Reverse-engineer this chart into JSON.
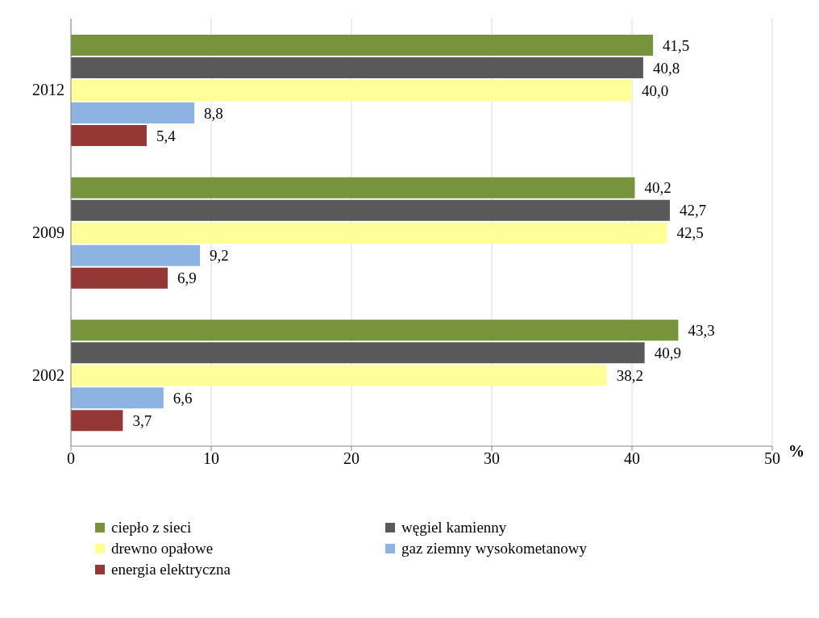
{
  "chart_data": {
    "type": "bar",
    "orientation": "horizontal",
    "xlabel": "%",
    "categories": [
      "2012",
      "2009",
      "2002"
    ],
    "series": [
      {
        "name": "ciepło z sieci",
        "color": "#77933c",
        "values": [
          41.5,
          40.2,
          43.3
        ],
        "value_labels": [
          "41,5",
          "40,2",
          "43,3"
        ]
      },
      {
        "name": "węgiel kamienny",
        "color": "#595959",
        "values": [
          40.8,
          42.7,
          40.9
        ],
        "value_labels": [
          "40,8",
          "42,7",
          "40,9"
        ]
      },
      {
        "name": "drewno opałowe",
        "color": "#ffff99",
        "values": [
          40.0,
          42.5,
          38.2
        ],
        "value_labels": [
          "40,0",
          "42,5",
          "38,2"
        ]
      },
      {
        "name": "gaz ziemny wysokometanowy",
        "color": "#8db3e2",
        "values": [
          8.8,
          9.2,
          6.6
        ],
        "value_labels": [
          "8,8",
          "9,2",
          "6,6"
        ]
      },
      {
        "name": "energia elektryczna",
        "color": "#953735",
        "values": [
          5.4,
          6.9,
          3.7
        ],
        "value_labels": [
          "5,4",
          "6,9",
          "3,7"
        ]
      }
    ],
    "xlim": [
      0,
      50
    ],
    "xticks": [
      0,
      10,
      20,
      30,
      40,
      50
    ],
    "grid": "x",
    "legend": "bottom"
  }
}
